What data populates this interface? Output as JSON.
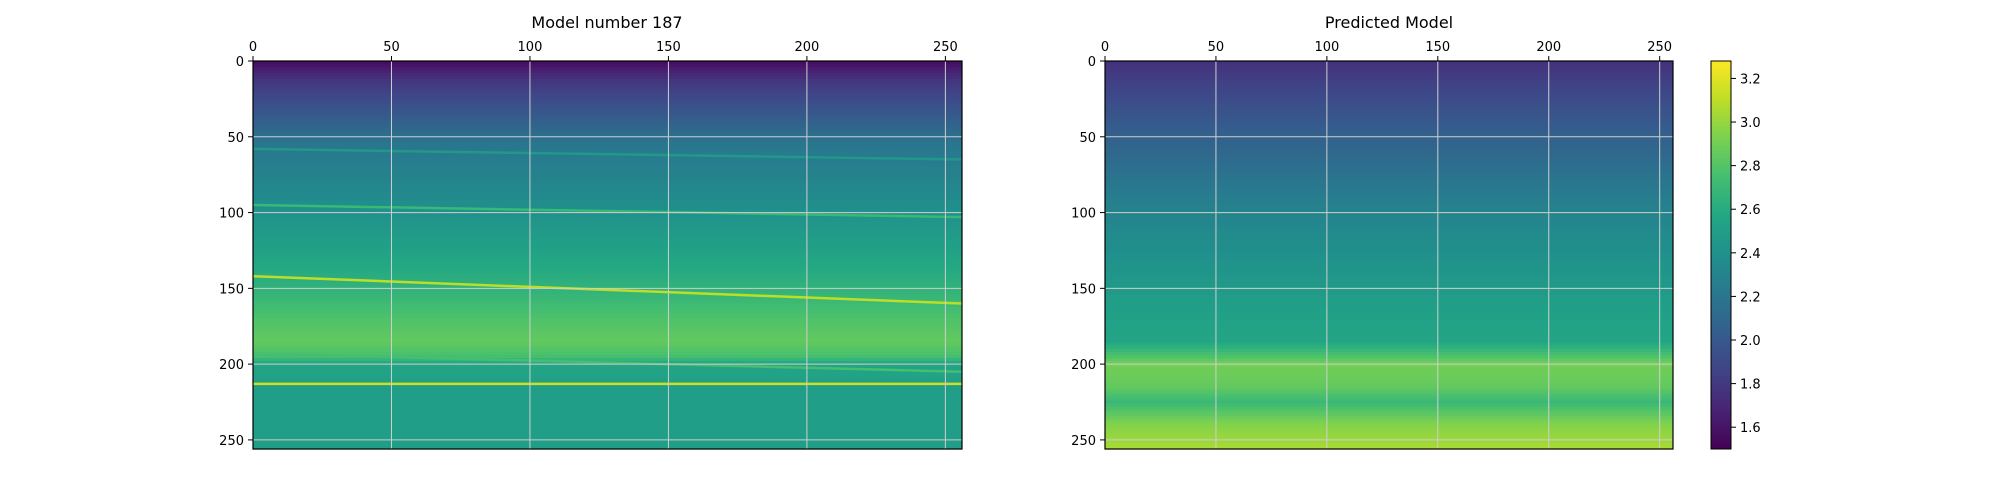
{
  "chart_data": [
    {
      "type": "heatmap",
      "title": "Model number 187",
      "xlabel": "",
      "ylabel": "",
      "xlim": [
        0,
        256
      ],
      "ylim": [
        256,
        0
      ],
      "xticks": [
        0,
        50,
        100,
        150,
        200,
        250
      ],
      "yticks": [
        0,
        50,
        100,
        150,
        200,
        250
      ],
      "x_axis_position": "top",
      "grid": true,
      "colormap": "viridis",
      "value_range": [
        1.5,
        3.28
      ],
      "velocity_profile": [
        [
          0,
          1.55
        ],
        [
          13,
          1.78
        ],
        [
          30,
          1.95
        ],
        [
          55,
          2.2
        ],
        [
          90,
          2.35
        ],
        [
          120,
          2.5
        ],
        [
          150,
          2.65
        ],
        [
          170,
          2.78
        ],
        [
          185,
          2.85
        ],
        [
          195,
          2.75
        ],
        [
          200,
          2.55
        ],
        [
          215,
          2.5
        ],
        [
          256,
          2.5
        ]
      ],
      "layer_boundaries": [
        {
          "y_start": 58,
          "y_end": 65,
          "value": 2.45
        },
        {
          "y_start": 95,
          "y_end": 103,
          "value": 2.7
        },
        {
          "y_start": 142,
          "y_end": 160,
          "value": 3.1
        },
        {
          "y_start": 193,
          "y_end": 205,
          "value": 2.75
        },
        {
          "y_start": 213,
          "y_end": 213,
          "value": 3.15
        }
      ]
    },
    {
      "type": "heatmap",
      "title": "Predicted Model",
      "xlabel": "",
      "ylabel": "",
      "xlim": [
        0,
        256
      ],
      "ylim": [
        256,
        0
      ],
      "xticks": [
        0,
        50,
        100,
        150,
        200,
        250
      ],
      "yticks": [
        0,
        50,
        100,
        150,
        200,
        250
      ],
      "x_axis_position": "top",
      "grid": true,
      "colormap": "viridis",
      "value_range": [
        1.5,
        3.28
      ],
      "velocity_profile": [
        [
          0,
          1.75
        ],
        [
          15,
          1.85
        ],
        [
          40,
          2.0
        ],
        [
          70,
          2.15
        ],
        [
          100,
          2.3
        ],
        [
          130,
          2.4
        ],
        [
          160,
          2.5
        ],
        [
          185,
          2.55
        ],
        [
          200,
          2.9
        ],
        [
          215,
          2.85
        ],
        [
          225,
          2.7
        ],
        [
          240,
          2.95
        ],
        [
          256,
          3.05
        ]
      ]
    }
  ],
  "colorbar": {
    "min": 1.5,
    "max": 3.28,
    "ticks": [
      "1.6",
      "1.8",
      "2.0",
      "2.2",
      "2.4",
      "2.6",
      "2.8",
      "3.0",
      "3.2"
    ],
    "colormap": "viridis"
  }
}
